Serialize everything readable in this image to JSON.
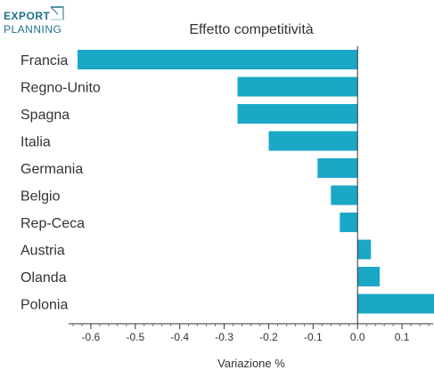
{
  "logo": {
    "line1": "EXPORT",
    "line2": "PLANNING",
    "color": "#1e6f8f"
  },
  "chart_data": {
    "type": "bar",
    "orientation": "horizontal",
    "title": "Effetto competitività",
    "xlabel": "Variazione %",
    "ylabel": "",
    "categories": [
      "Francia",
      "Regno-Unito",
      "Spagna",
      "Italia",
      "Germania",
      "Belgio",
      "Rep-Ceca",
      "Austria",
      "Olanda",
      "Polonia"
    ],
    "values": [
      -0.63,
      -0.27,
      -0.27,
      -0.2,
      -0.09,
      -0.06,
      -0.04,
      0.03,
      0.05,
      0.19
    ],
    "xlim": [
      -0.65,
      0.17
    ],
    "ticks": [
      -0.6,
      -0.5,
      -0.4,
      -0.3,
      -0.2,
      -0.1,
      0.0,
      0.1
    ],
    "tick_labels": [
      "-0.6",
      "-0.5",
      "-0.4",
      "-0.3",
      "-0.2",
      "-0.1",
      "0.0",
      "0.1"
    ],
    "bar_color": "#1ba7c6",
    "grid": false,
    "legend": "none"
  }
}
